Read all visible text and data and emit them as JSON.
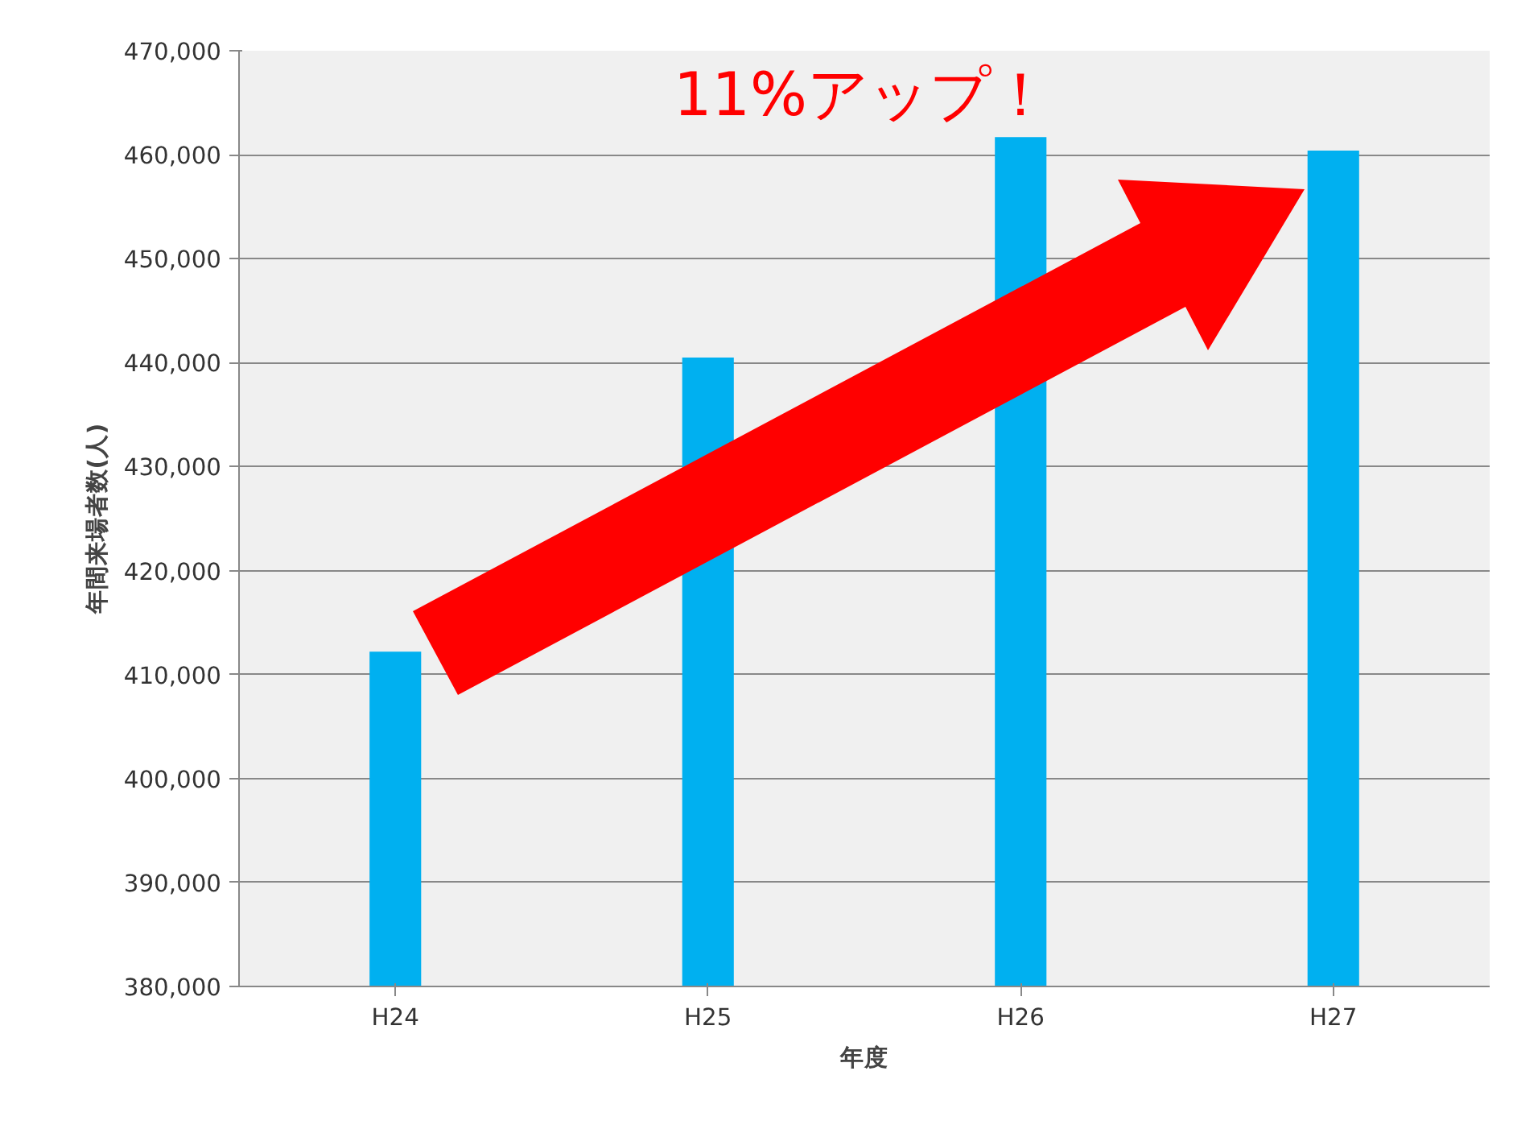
{
  "chart_data": {
    "type": "bar",
    "xlabel": "年度",
    "ylabel": "年間来場者数(人)",
    "categories": [
      "H24",
      "H25",
      "H26",
      "H27"
    ],
    "values": [
      412200,
      440500,
      461700,
      460400
    ],
    "color": "#00b0f0",
    "ylim": [
      380000,
      470000
    ],
    "yticks": [
      {
        "value": 380000,
        "label": "380,000"
      },
      {
        "value": 390000,
        "label": "390,000"
      },
      {
        "value": 400000,
        "label": "400,000"
      },
      {
        "value": 410000,
        "label": "410,000"
      },
      {
        "value": 420000,
        "label": "420,000"
      },
      {
        "value": 430000,
        "label": "430,000"
      },
      {
        "value": 440000,
        "label": "440,000"
      },
      {
        "value": 450000,
        "label": "450,000"
      },
      {
        "value": 460000,
        "label": "460,000"
      },
      {
        "value": 470000,
        "label": "470,000"
      }
    ],
    "grid": "y",
    "annotations": [
      "11%アップ！"
    ]
  }
}
